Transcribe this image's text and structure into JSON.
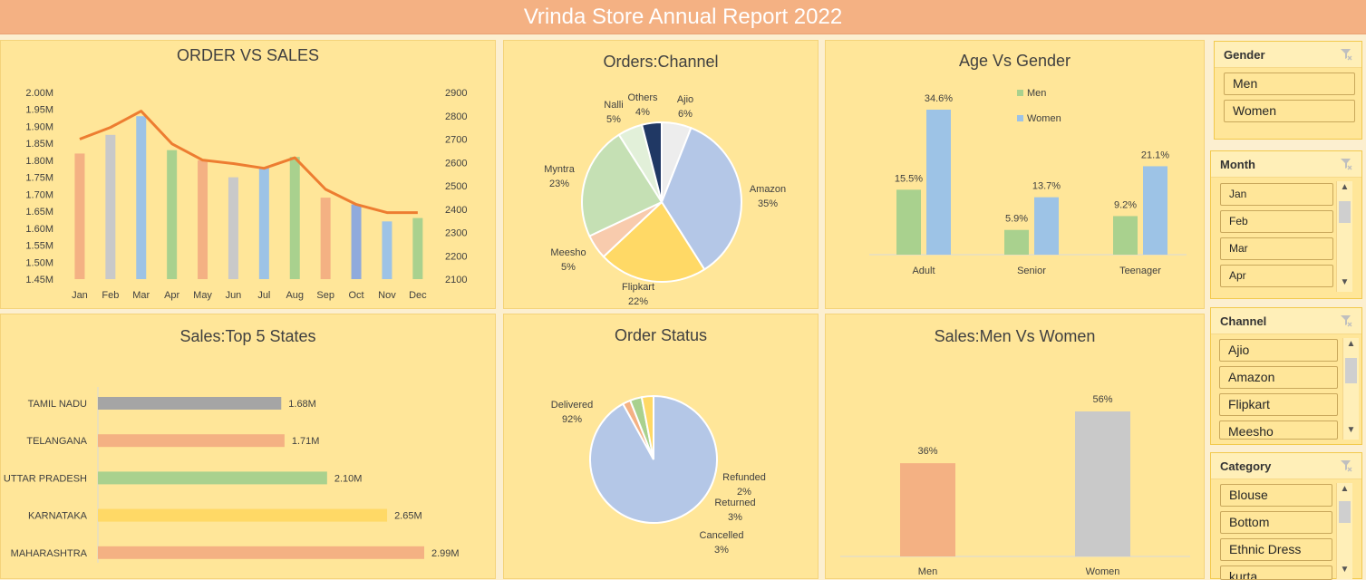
{
  "header": {
    "title": "Vrinda Store Annual Report 2022"
  },
  "colors": {
    "orange": "#F4B183",
    "gray": "#C9C9C9",
    "blue": "#9DC3E6",
    "green": "#A9D18E",
    "yellow": "#FFD966",
    "line": "#ED7D31",
    "panel": "#FFE699"
  },
  "chart_data": [
    {
      "id": "order_vs_sales",
      "type": "bar",
      "title": "ORDER VS SALES",
      "categories": [
        "Jan",
        "Feb",
        "Mar",
        "Apr",
        "May",
        "Jun",
        "Jul",
        "Aug",
        "Sep",
        "Oct",
        "Nov",
        "Dec"
      ],
      "series": [
        {
          "axis": "left",
          "type": "bar",
          "values": [
            1.82,
            1.875,
            1.93,
            1.83,
            1.8,
            1.75,
            1.78,
            1.81,
            1.69,
            1.67,
            1.62,
            1.63
          ],
          "colors": [
            "#F4B183",
            "#C9C9C9",
            "#9DC3E6",
            "#A9D18E",
            "#F4B183",
            "#C9C9C9",
            "#9DC3E6",
            "#A9D18E",
            "#F4B183",
            "#8FAADC",
            "#9DC3E6",
            "#A9D18E"
          ]
        },
        {
          "axis": "right",
          "type": "line",
          "values": [
            2700,
            2750,
            2820,
            2680,
            2610,
            2595,
            2575,
            2620,
            2485,
            2420,
            2385,
            2385
          ],
          "color": "#ED7D31"
        }
      ],
      "left_axis": {
        "min": 1.45,
        "max": 2.0,
        "ticks": [
          "1.45M",
          "1.50M",
          "1.55M",
          "1.60M",
          "1.65M",
          "1.70M",
          "1.75M",
          "1.80M",
          "1.85M",
          "1.90M",
          "1.95M",
          "2.00M"
        ]
      },
      "right_axis": {
        "min": 2100,
        "max": 2900,
        "ticks": [
          "2100",
          "2200",
          "2300",
          "2400",
          "2500",
          "2600",
          "2700",
          "2800",
          "2900"
        ]
      }
    },
    {
      "id": "orders_channel",
      "type": "pie",
      "title": "Orders:Channel",
      "slices": [
        {
          "label": "Ajio",
          "value": 6,
          "pct": "6%",
          "color": "#EDEDED"
        },
        {
          "label": "Amazon",
          "value": 35,
          "pct": "35%",
          "color": "#B4C7E7"
        },
        {
          "label": "Flipkart",
          "value": 22,
          "pct": "22%",
          "color": "#FFD966"
        },
        {
          "label": "Meesho",
          "value": 5,
          "pct": "5%",
          "color": "#F8CBAD"
        },
        {
          "label": "Myntra",
          "value": 23,
          "pct": "23%",
          "color": "#C5E0B4"
        },
        {
          "label": "Nalli",
          "value": 5,
          "pct": "5%",
          "color": "#E2F0D9"
        },
        {
          "label": "Others",
          "value": 4,
          "pct": "4%",
          "color": "#203864"
        }
      ]
    },
    {
      "id": "age_vs_gender",
      "type": "bar",
      "title": "Age Vs Gender",
      "categories": [
        "Adult",
        "Senior",
        "Teenager"
      ],
      "series": [
        {
          "name": "Men",
          "values": [
            15.5,
            5.9,
            9.2
          ],
          "labels": [
            "15.5%",
            "5.9%",
            "9.2%"
          ],
          "color": "#A9D18E"
        },
        {
          "name": "Women",
          "values": [
            34.6,
            13.7,
            21.1
          ],
          "labels": [
            "34.6%",
            "13.7%",
            "21.1%"
          ],
          "color": "#9DC3E6"
        }
      ]
    },
    {
      "id": "top5_states",
      "type": "bar",
      "orientation": "horizontal",
      "title": "Sales:Top 5 States",
      "categories": [
        "TAMIL NADU",
        "TELANGANA",
        "UTTAR PRADESH",
        "KARNATAKA",
        "MAHARASHTRA"
      ],
      "values": [
        1.68,
        1.71,
        2.1,
        2.65,
        2.99
      ],
      "labels": [
        "1.68M",
        "1.71M",
        "2.10M",
        "2.65M",
        "2.99M"
      ],
      "colors": [
        "#A5A5A5",
        "#F4B183",
        "#A9D18E",
        "#FFD966",
        "#F4B183"
      ]
    },
    {
      "id": "order_status",
      "type": "pie",
      "title": "Order Status",
      "slices": [
        {
          "label": "Delivered",
          "value": 92,
          "pct": "92%",
          "color": "#B4C7E7"
        },
        {
          "label": "Refunded",
          "value": 2,
          "pct": "2%",
          "color": "#F4B183"
        },
        {
          "label": "Returned",
          "value": 3,
          "pct": "3%",
          "color": "#A9D18E"
        },
        {
          "label": "Cancelled",
          "value": 3,
          "pct": "3%",
          "color": "#FFD966"
        }
      ]
    },
    {
      "id": "men_vs_women",
      "type": "bar",
      "title": "Sales:Men Vs Women",
      "categories": [
        "Men",
        "Women"
      ],
      "values": [
        36,
        56
      ],
      "labels": [
        "36%",
        "56%"
      ],
      "colors": [
        "#F4B183",
        "#C9C9C9"
      ],
      "ylim": [
        0,
        60
      ]
    }
  ],
  "slicers": {
    "gender": {
      "title": "Gender",
      "items": [
        "Men",
        "Women"
      ]
    },
    "month": {
      "title": "Month",
      "items": [
        "Jan",
        "Feb",
        "Mar",
        "Apr"
      ]
    },
    "channel": {
      "title": "Channel",
      "items": [
        "Ajio",
        "Amazon",
        "Flipkart",
        "Meesho"
      ]
    },
    "category": {
      "title": "Category",
      "items": [
        "Blouse",
        "Bottom",
        "Ethnic Dress",
        "kurta"
      ]
    }
  },
  "icons": {
    "clear_filter": "clear-filter-icon",
    "scroll_up": "chevron-up-icon",
    "scroll_down": "chevron-down-icon"
  }
}
